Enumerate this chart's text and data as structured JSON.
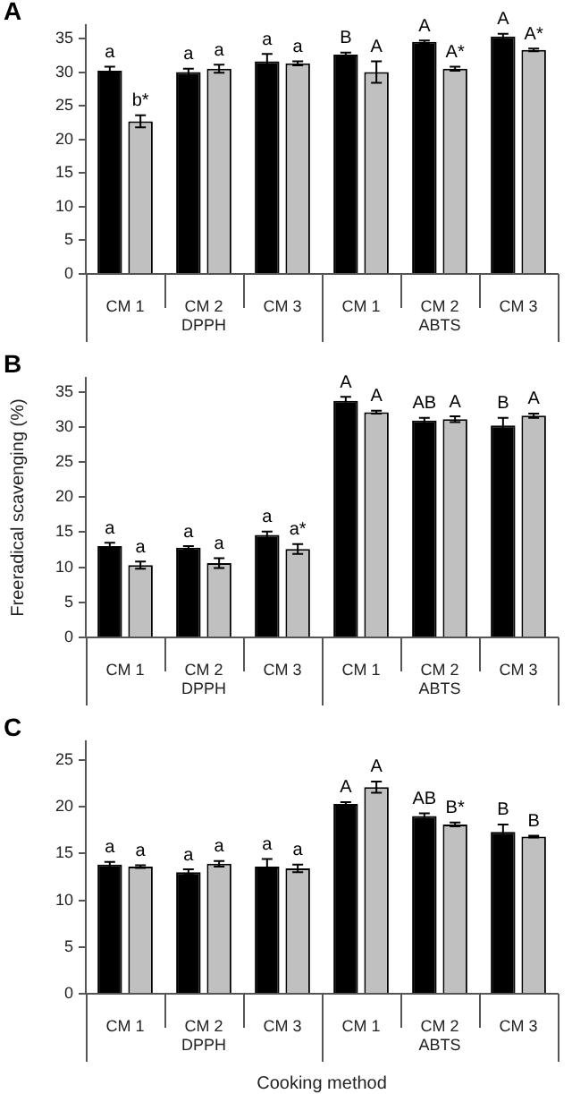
{
  "chart_data": [
    {
      "type": "bar",
      "title": "A",
      "categories": [
        "CM 1",
        "CM 2",
        "CM 3",
        "CM 1",
        "CM 2",
        "CM 3"
      ],
      "annotations": [
        "DPPH",
        "ABTS"
      ],
      "ylim": [
        0,
        37
      ],
      "yticks": [
        0,
        5,
        10,
        15,
        20,
        25,
        30,
        35
      ],
      "series": [
        {
          "color": "#000000",
          "values": [
            30.2,
            30.0,
            31.6,
            32.6,
            34.5,
            35.3
          ],
          "errors": [
            0.6,
            0.5,
            1.1,
            0.3,
            0.2,
            0.4
          ],
          "value_labels": [
            "a",
            "a",
            "a",
            "B",
            "A",
            "A"
          ]
        },
        {
          "color": "#c0c0c0",
          "values": [
            22.7,
            30.5,
            31.3,
            30.0,
            30.5,
            33.3
          ],
          "errors": [
            0.9,
            0.6,
            0.3,
            1.6,
            0.3,
            0.2
          ],
          "value_labels": [
            "b*",
            "a",
            "a",
            "A",
            "A*",
            "A*"
          ]
        }
      ]
    },
    {
      "type": "bar",
      "title": "B",
      "ylabel": "Freeradical scavenging (%)",
      "categories": [
        "CM 1",
        "CM 2",
        "CM 3",
        "CM 1",
        "CM 2",
        "CM 3"
      ],
      "annotations": [
        "DPPH",
        "ABTS"
      ],
      "ylim": [
        0,
        37
      ],
      "yticks": [
        0,
        5,
        10,
        15,
        20,
        25,
        30,
        35
      ],
      "series": [
        {
          "color": "#000000",
          "values": [
            13.0,
            12.8,
            14.6,
            33.7,
            30.9,
            30.2
          ],
          "errors": [
            0.5,
            0.2,
            0.5,
            0.6,
            0.4,
            1.1
          ],
          "value_labels": [
            "a",
            "a",
            "a",
            "A",
            "AB",
            "B"
          ]
        },
        {
          "color": "#c0c0c0",
          "values": [
            10.3,
            10.6,
            12.6,
            32.1,
            31.1,
            31.6
          ],
          "errors": [
            0.5,
            0.7,
            0.7,
            0.2,
            0.4,
            0.3
          ],
          "value_labels": [
            "a",
            "a",
            "a*",
            "A",
            "A",
            "A"
          ]
        }
      ]
    },
    {
      "type": "bar",
      "title": "C",
      "xlabel": "Cooking method",
      "categories": [
        "CM 1",
        "CM 2",
        "CM 3",
        "CM 1",
        "CM 2",
        "CM 3"
      ],
      "annotations": [
        "DPPH",
        "ABTS"
      ],
      "ylim": [
        0,
        27
      ],
      "yticks": [
        0,
        5,
        10,
        15,
        20,
        25
      ],
      "series": [
        {
          "color": "#000000",
          "values": [
            13.8,
            13.0,
            13.6,
            20.3,
            19.0,
            17.3
          ],
          "errors": [
            0.3,
            0.3,
            0.8,
            0.2,
            0.3,
            0.8
          ],
          "value_labels": [
            "a",
            "a",
            "a",
            "A",
            "AB",
            "B"
          ]
        },
        {
          "color": "#c0c0c0",
          "values": [
            13.6,
            13.9,
            13.4,
            22.1,
            18.1,
            16.8
          ],
          "errors": [
            0.15,
            0.3,
            0.4,
            0.6,
            0.2,
            0.1
          ],
          "value_labels": [
            "a",
            "a",
            "a",
            "A",
            "B*",
            "B"
          ]
        }
      ]
    }
  ]
}
